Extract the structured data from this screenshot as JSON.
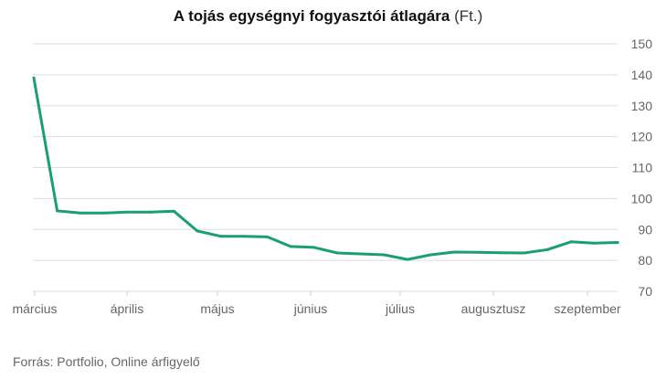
{
  "chart_data": {
    "type": "line",
    "title": "A tojás egységnyi fogyasztói átlagára",
    "title_unit": "(Ft.)",
    "xlabel": "",
    "ylabel": "",
    "x_tick_labels": [
      "március",
      "április",
      "május",
      "június",
      "július",
      "augusztusz",
      "szeptember"
    ],
    "y_ticks": [
      70,
      80,
      90,
      100,
      110,
      120,
      130,
      140,
      150
    ],
    "ylim": [
      70,
      150
    ],
    "grid": true,
    "y_axis_side": "right",
    "line_color": "#1a9e75",
    "series": [
      {
        "values": [
          139,
          96,
          95.3,
          95.3,
          95.6,
          95.6,
          95.9,
          89.5,
          87.8,
          87.8,
          87.6,
          84.5,
          84.2,
          82.4,
          82.1,
          81.8,
          80.3,
          81.8,
          82.7,
          82.6,
          82.5,
          82.4,
          83.5,
          86.0,
          85.6,
          85.8
        ]
      }
    ]
  },
  "source_text": "Forrás: Portfolio, Online árfigyelő"
}
